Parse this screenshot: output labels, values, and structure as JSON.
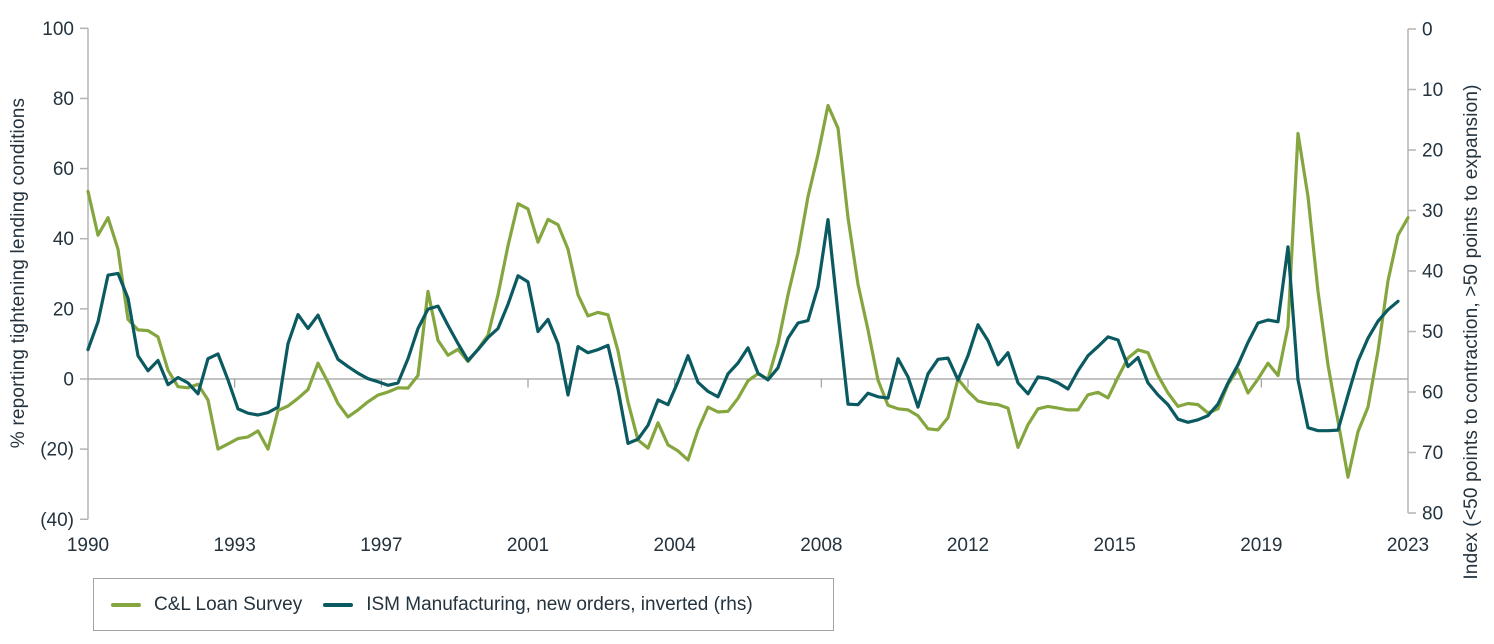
{
  "chart_data": {
    "type": "line",
    "title": "",
    "frequency": "quarterly",
    "x_start": "1990Q1",
    "x_end": "2023Q1",
    "x_tick_labels": [
      "1990",
      "1993",
      "1997",
      "2001",
      "2004",
      "2008",
      "2012",
      "2015",
      "2019",
      "2023"
    ],
    "grid": "zero-line-only",
    "legend_position": "bottom-left",
    "left_axis": {
      "label": "% reporting tightening lending conditions",
      "ticks": [
        "100",
        "80",
        "60",
        "40",
        "20",
        "0",
        "(20)",
        "(40)"
      ],
      "tick_values": [
        100,
        80,
        60,
        40,
        20,
        0,
        -20,
        -40
      ],
      "range": [
        -40,
        100
      ]
    },
    "right_axis": {
      "label": "Index (<50 points to contraction, >50 points to expansion)",
      "ticks": [
        "0",
        "10",
        "20",
        "30",
        "40",
        "50",
        "60",
        "70",
        "80"
      ],
      "tick_values": [
        0,
        10,
        20,
        30,
        40,
        50,
        60,
        70,
        80
      ],
      "range": [
        0,
        80
      ],
      "inverted": true
    },
    "series": [
      {
        "name": "C&L Loan Survey",
        "axis": "left",
        "color": "#85a63f",
        "values": [
          53.5,
          41,
          46,
          37,
          17,
          14,
          13.8,
          12,
          2.5,
          -2.2,
          -2.5,
          -1.5,
          -6,
          -20,
          -18.5,
          -17,
          -16.5,
          -14.8,
          -20,
          -9,
          -7.7,
          -5.5,
          -3,
          4.5,
          -1,
          -7,
          -10.8,
          -8.8,
          -6.5,
          -4.6,
          -3.7,
          -2.5,
          -2.6,
          1,
          25,
          11,
          6.8,
          8.5,
          5,
          8.5,
          12.5,
          24,
          38,
          50,
          48.5,
          39,
          45.5,
          44,
          37,
          24,
          18,
          19,
          18.3,
          8,
          -6.6,
          -17.4,
          -19.7,
          -12.5,
          -18.8,
          -20.5,
          -23.1,
          -14.5,
          -8,
          -9.4,
          -9.2,
          -5.5,
          -0.5,
          1.5,
          0,
          10,
          24,
          36,
          52,
          64,
          78,
          71.5,
          46,
          27,
          14,
          -0.3,
          -7.5,
          -8.5,
          -8.8,
          -10.5,
          -14.2,
          -14.5,
          -11,
          0,
          -3.5,
          -6.3,
          -7,
          -7.3,
          -8.3,
          -19.5,
          -13,
          -8.5,
          -7.8,
          -8.3,
          -8.8,
          -8.8,
          -4.5,
          -3.8,
          -5.4,
          0.5,
          6,
          8.3,
          7.5,
          1,
          -4,
          -7.8,
          -7,
          -7.3,
          -9.7,
          -8.5,
          -1.5,
          2.8,
          -4,
          0,
          4.5,
          1,
          15,
          70,
          52,
          25,
          4,
          -12,
          -28,
          -15,
          -8,
          8,
          28,
          41,
          46
        ]
      },
      {
        "name": "ISM Manufacturing, new orders, inverted (rhs)",
        "axis": "right",
        "color": "#0b5a61",
        "values": [
          53,
          48.4,
          40.7,
          40.4,
          44.5,
          54,
          56.5,
          54.8,
          58.8,
          57.6,
          58.5,
          60.3,
          54.5,
          53.7,
          58,
          62.8,
          63.5,
          63.8,
          63.4,
          62.5,
          52,
          47.2,
          49.5,
          47.3,
          51,
          54.6,
          55.8,
          56.9,
          57.8,
          58.3,
          58.9,
          58.5,
          54.5,
          49.5,
          46.3,
          45.8,
          49,
          52,
          54.8,
          53,
          51,
          49.5,
          45.5,
          40.8,
          41.8,
          50,
          48,
          52,
          60.5,
          52.5,
          53.5,
          53,
          52.3,
          59.5,
          68.5,
          67.8,
          65.5,
          61.3,
          62.1,
          58.3,
          54,
          58.4,
          59.9,
          60.8,
          57,
          55.2,
          52.7,
          56.9,
          58,
          56,
          51.1,
          48.6,
          48.2,
          42.6,
          31.5,
          47,
          62,
          62.1,
          60.2,
          60.8,
          61,
          54.5,
          57.5,
          62.5,
          57,
          54.6,
          54.4,
          58,
          54,
          48.9,
          51.5,
          55.5,
          53.5,
          58.5,
          60.3,
          57.5,
          57.8,
          58.5,
          59.5,
          56.5,
          54,
          52.5,
          50.9,
          51.4,
          55.8,
          54.3,
          58.5,
          60.5,
          62.1,
          64.5,
          65,
          64.6,
          63.9,
          62,
          58.5,
          55.5,
          51.8,
          48.6,
          48.1,
          48.4,
          36,
          58,
          65.9,
          66.4,
          66.4,
          66.3,
          60.5,
          54.9,
          51.1,
          48.3,
          46.4,
          45,
          null
        ]
      }
    ],
    "colors": {
      "axis_line": "#b3b3b3",
      "zero_line": "#9f9f9f",
      "text": "#24333e",
      "legend_border": "#a3a3a3",
      "background": "#ffffff"
    }
  },
  "legend": {
    "series1_label": "C&L Loan Survey",
    "series2_label": "ISM Manufacturing, new orders, inverted (rhs)"
  },
  "left_axis_title": "% reporting tightening lending conditions",
  "right_axis_title": "Index (<50 points to contraction, >50 points to expansion)"
}
